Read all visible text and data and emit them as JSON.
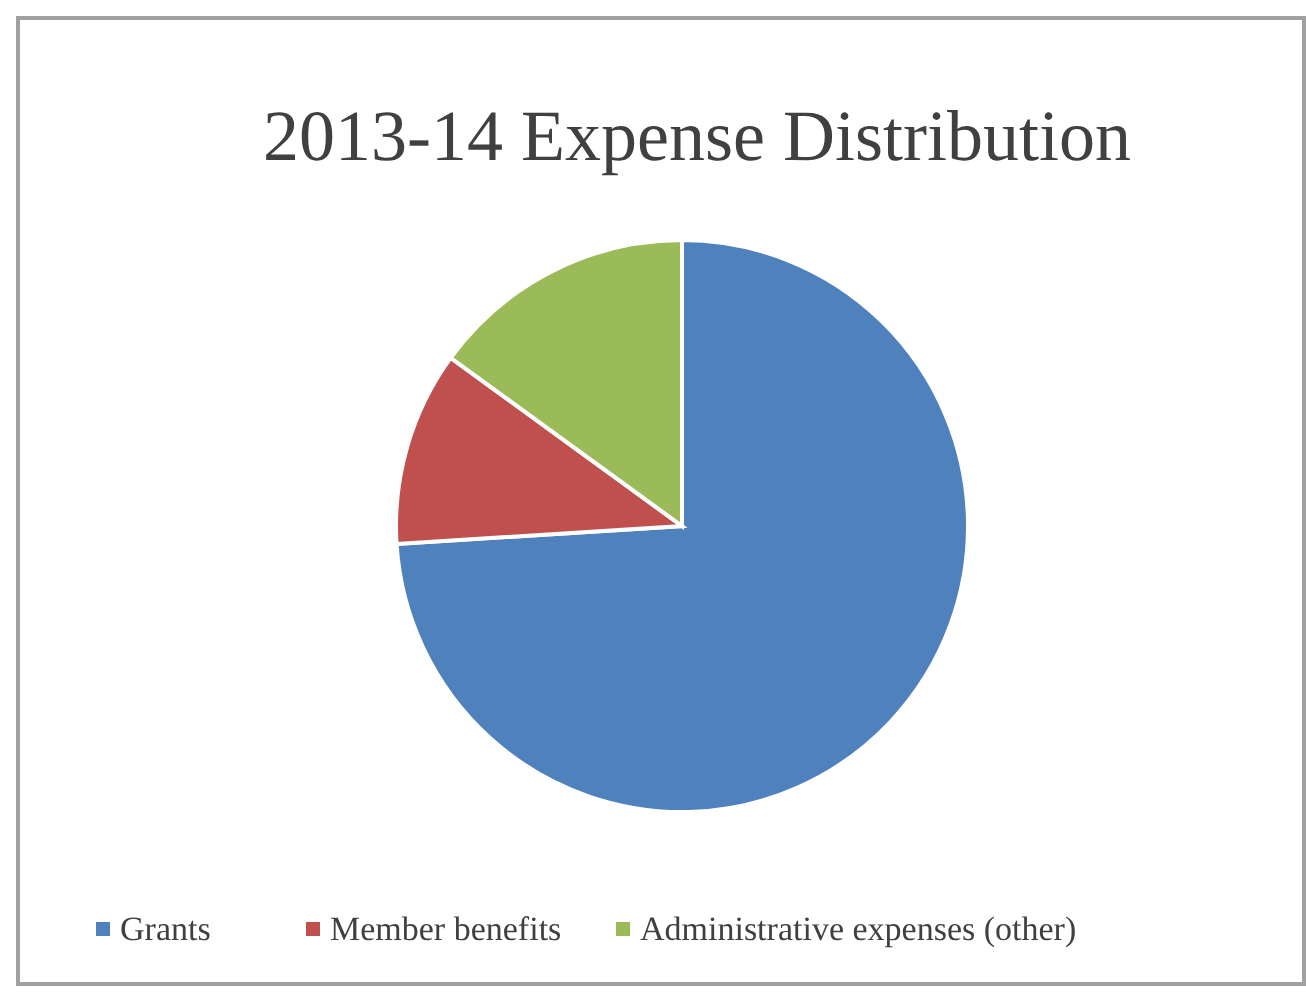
{
  "chart_data": {
    "type": "pie",
    "title": "2013-14 Expense Distribution",
    "categories": [
      "Grants",
      "Member benefits",
      "Administrative expenses (other)"
    ],
    "values": [
      74,
      11,
      15
    ],
    "colors": [
      "#4f81bd",
      "#c0504d",
      "#9bbb59"
    ],
    "legend": "bottom"
  }
}
